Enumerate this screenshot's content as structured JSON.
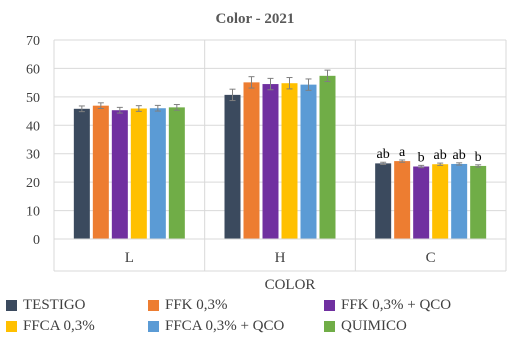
{
  "chart_data": {
    "type": "bar",
    "title": "Color - 2021",
    "xlabel": "COLOR",
    "ylabel": "",
    "ylim": [
      0,
      70
    ],
    "yticks": [
      0,
      10,
      20,
      30,
      40,
      50,
      60,
      70
    ],
    "categories": [
      "L",
      "H",
      "C"
    ],
    "grid": true,
    "legend_position": "bottom",
    "series": [
      {
        "name": "TESTIGO",
        "color": "#3b4a5e",
        "values": [
          45.8,
          50.7,
          26.6
        ],
        "errors": [
          1.0,
          2.0,
          0.4
        ],
        "labels": [
          "",
          "",
          "ab"
        ]
      },
      {
        "name": "FFK 0,3%",
        "color": "#ed7d31",
        "values": [
          46.9,
          55.1,
          27.4
        ],
        "errors": [
          1.0,
          2.0,
          0.4
        ],
        "labels": [
          "",
          "",
          "a"
        ]
      },
      {
        "name": "FFK 0,3% + QCO",
        "color": "#7030a0",
        "values": [
          45.3,
          54.5,
          25.5
        ],
        "errors": [
          1.0,
          2.0,
          0.4
        ],
        "labels": [
          "",
          "",
          "b"
        ]
      },
      {
        "name": "FFCA 0,3%",
        "color": "#ffc000",
        "values": [
          45.9,
          54.8,
          26.3
        ],
        "errors": [
          1.0,
          2.0,
          0.4
        ],
        "labels": [
          "",
          "",
          "ab"
        ]
      },
      {
        "name": "FFCA 0,3% + QCO",
        "color": "#5b9bd5",
        "values": [
          46.0,
          54.3,
          26.4
        ],
        "errors": [
          1.0,
          2.0,
          0.4
        ],
        "labels": [
          "",
          "",
          "ab"
        ]
      },
      {
        "name": "QUIMICO",
        "color": "#70ad47",
        "values": [
          46.3,
          57.4,
          25.7
        ],
        "errors": [
          1.0,
          2.0,
          0.4
        ],
        "labels": [
          "",
          "",
          "b"
        ]
      }
    ]
  }
}
